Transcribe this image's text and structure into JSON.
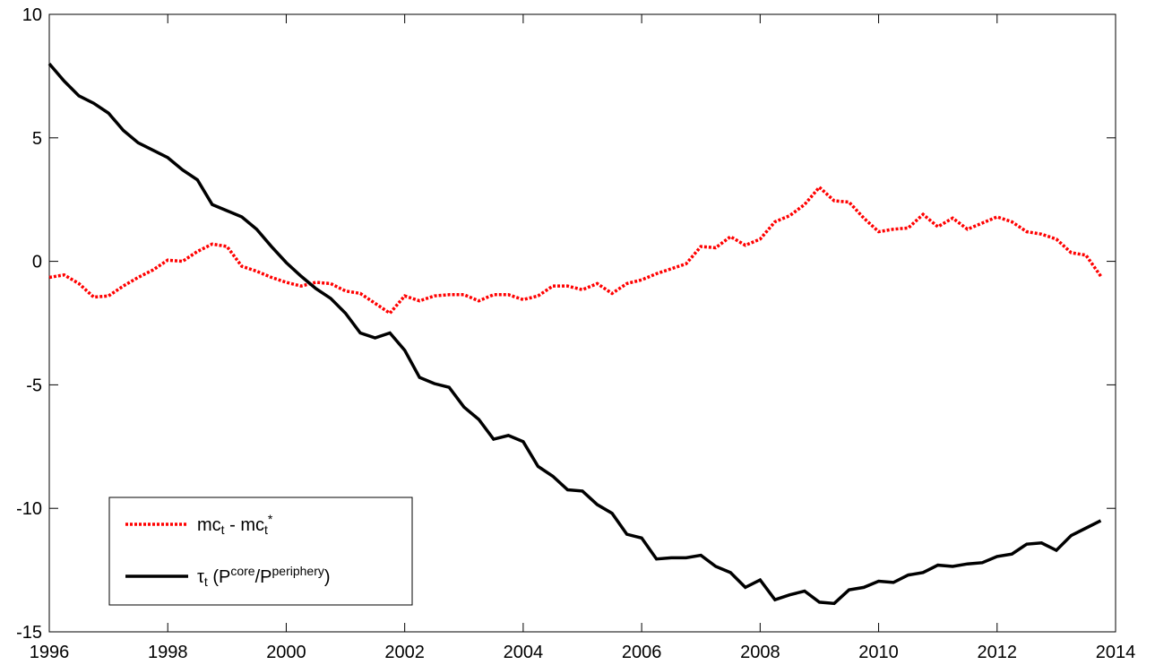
{
  "chart_data": {
    "type": "line",
    "x": [
      1996,
      1996.25,
      1996.5,
      1996.75,
      1997,
      1997.25,
      1997.5,
      1997.75,
      1998,
      1998.25,
      1998.5,
      1998.75,
      1999,
      1999.25,
      1999.5,
      1999.75,
      2000,
      2000.25,
      2000.5,
      2000.75,
      2001,
      2001.25,
      2001.5,
      2001.75,
      2002,
      2002.25,
      2002.5,
      2002.75,
      2003,
      2003.25,
      2003.5,
      2003.75,
      2004,
      2004.25,
      2004.5,
      2004.75,
      2005,
      2005.25,
      2005.5,
      2005.75,
      2006,
      2006.25,
      2006.5,
      2006.75,
      2007,
      2007.25,
      2007.5,
      2007.75,
      2008,
      2008.25,
      2008.5,
      2008.75,
      2009,
      2009.25,
      2009.5,
      2009.75,
      2010,
      2010.25,
      2010.5,
      2010.75,
      2011,
      2011.25,
      2011.5,
      2011.75,
      2012,
      2012.25,
      2012.5,
      2012.75,
      2013,
      2013.25,
      2013.5,
      2013.75
    ],
    "series": [
      {
        "name": "mc_{t} - mc_{t}^{*}",
        "color": "#ff0000",
        "dash": true,
        "values": [
          -0.65,
          -0.55,
          -0.9,
          -1.45,
          -1.4,
          -1.0,
          -0.65,
          -0.35,
          0.05,
          0.0,
          0.4,
          0.7,
          0.6,
          -0.2,
          -0.4,
          -0.65,
          -0.85,
          -1.0,
          -0.85,
          -0.9,
          -1.2,
          -1.3,
          -1.7,
          -2.1,
          -1.4,
          -1.6,
          -1.4,
          -1.35,
          -1.35,
          -1.6,
          -1.35,
          -1.35,
          -1.55,
          -1.4,
          -1.0,
          -1.0,
          -1.15,
          -0.9,
          -1.3,
          -0.9,
          -0.75,
          -0.5,
          -0.3,
          -0.1,
          0.6,
          0.55,
          1.0,
          0.65,
          0.9,
          1.6,
          1.85,
          2.3,
          3.0,
          2.45,
          2.4,
          1.75,
          1.2,
          1.3,
          1.35,
          1.9,
          1.4,
          1.75,
          1.3,
          1.55,
          1.8,
          1.6,
          1.2,
          1.1,
          0.9,
          0.35,
          0.25,
          -0.6
        ]
      },
      {
        "name": "τ_{t} (P^{core}/P^{periphery})",
        "color": "#000000",
        "dash": false,
        "values": [
          8.0,
          7.3,
          6.7,
          6.4,
          6.0,
          5.3,
          4.8,
          4.5,
          4.2,
          3.7,
          3.3,
          2.3,
          2.05,
          1.8,
          1.3,
          0.6,
          -0.05,
          -0.6,
          -1.1,
          -1.5,
          -2.1,
          -2.9,
          -3.1,
          -2.9,
          -3.6,
          -4.7,
          -4.95,
          -5.1,
          -5.9,
          -6.4,
          -7.2,
          -7.05,
          -7.3,
          -8.3,
          -8.7,
          -9.25,
          -9.3,
          -9.85,
          -10.2,
          -11.05,
          -11.2,
          -12.05,
          -12.0,
          -12.0,
          -11.9,
          -12.35,
          -12.6,
          -13.2,
          -12.9,
          -13.7,
          -13.5,
          -13.35,
          -13.8,
          -13.85,
          -13.3,
          -13.2,
          -12.95,
          -13.0,
          -12.7,
          -12.6,
          -12.3,
          -12.35,
          -12.25,
          -12.2,
          -11.95,
          -11.85,
          -11.45,
          -11.4,
          -11.7,
          -11.1,
          -10.8,
          -10.5
        ]
      }
    ],
    "xlim": [
      1996,
      2014
    ],
    "xticks": [
      1996,
      1998,
      2000,
      2002,
      2004,
      2006,
      2008,
      2010,
      2012,
      2014
    ],
    "ylim": [
      -15,
      10
    ],
    "yticks": [
      -15,
      -10,
      -5,
      0,
      5,
      10
    ],
    "legend": "lower left",
    "grid": false
  }
}
